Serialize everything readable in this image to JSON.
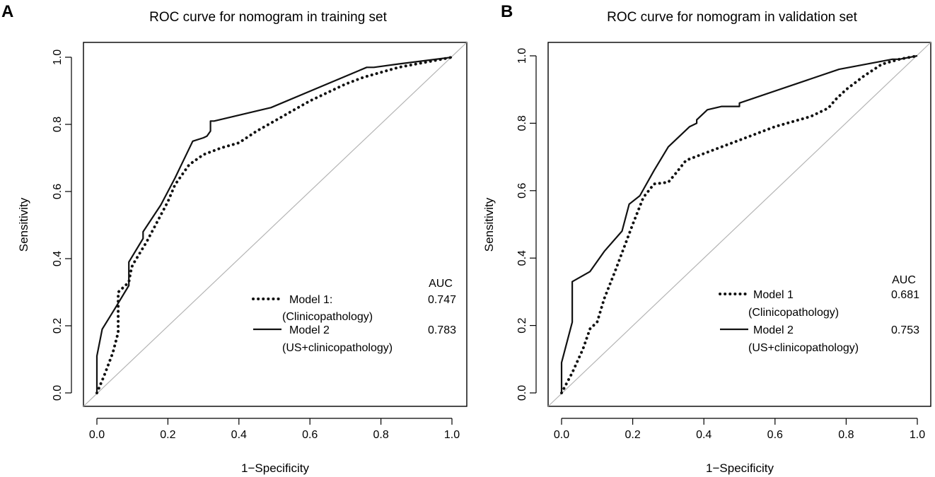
{
  "chart_data": [
    {
      "type": "line",
      "panel": "A",
      "title": "ROC curve for nomogram in training set",
      "xlabel": "1−Specificity",
      "ylabel": "Sensitivity",
      "xlim": [
        0,
        1
      ],
      "ylim": [
        0,
        1
      ],
      "xticks": [
        "0.0",
        "0.2",
        "0.4",
        "0.6",
        "0.8",
        "1.0"
      ],
      "yticks": [
        "0.0",
        "0.2",
        "0.4",
        "0.6",
        "0.8",
        "1.0"
      ],
      "reference_line": "diagonal",
      "legend": {
        "placement": "bottom-right",
        "header": "AUC",
        "entries": [
          {
            "label": "Model 1:",
            "sublabel": "(Clinicopathology)",
            "auc": "0.747",
            "style": "dotted"
          },
          {
            "label": "Model 2",
            "sublabel": "(US+clinicopathology)",
            "auc": "0.783",
            "style": "solid"
          }
        ]
      },
      "series": [
        {
          "name": "Model 1: (Clinicopathology)",
          "style": "dotted",
          "points": [
            [
              0,
              0
            ],
            [
              0.02,
              0.05
            ],
            [
              0.045,
              0.12
            ],
            [
              0.06,
              0.18
            ],
            [
              0.06,
              0.3
            ],
            [
              0.09,
              0.33
            ],
            [
              0.095,
              0.36
            ],
            [
              0.1,
              0.38
            ],
            [
              0.14,
              0.45
            ],
            [
              0.2,
              0.57
            ],
            [
              0.22,
              0.62
            ],
            [
              0.26,
              0.68
            ],
            [
              0.3,
              0.71
            ],
            [
              0.35,
              0.73
            ],
            [
              0.4,
              0.745
            ],
            [
              0.45,
              0.78
            ],
            [
              0.5,
              0.81
            ],
            [
              0.55,
              0.84
            ],
            [
              0.6,
              0.87
            ],
            [
              0.65,
              0.895
            ],
            [
              0.7,
              0.92
            ],
            [
              0.75,
              0.94
            ],
            [
              0.8,
              0.955
            ],
            [
              0.85,
              0.97
            ],
            [
              0.9,
              0.98
            ],
            [
              0.95,
              0.99
            ],
            [
              1,
              1
            ]
          ]
        },
        {
          "name": "Model 2 (US+clinicopathology)",
          "style": "solid",
          "points": [
            [
              0,
              0
            ],
            [
              0,
              0.11
            ],
            [
              0.015,
              0.19
            ],
            [
              0.05,
              0.25
            ],
            [
              0.09,
              0.32
            ],
            [
              0.09,
              0.39
            ],
            [
              0.13,
              0.46
            ],
            [
              0.13,
              0.48
            ],
            [
              0.18,
              0.56
            ],
            [
              0.22,
              0.64
            ],
            [
              0.27,
              0.75
            ],
            [
              0.3,
              0.76
            ],
            [
              0.31,
              0.765
            ],
            [
              0.32,
              0.78
            ],
            [
              0.32,
              0.81
            ],
            [
              0.33,
              0.81
            ],
            [
              0.49,
              0.85
            ],
            [
              0.76,
              0.97
            ],
            [
              0.78,
              0.97
            ],
            [
              0.85,
              0.98
            ],
            [
              1,
              1
            ]
          ]
        }
      ]
    },
    {
      "type": "line",
      "panel": "B",
      "title": "ROC curve for nomogram in validation set",
      "xlabel": "1−Specificity",
      "ylabel": "Sensitivity",
      "xlim": [
        0,
        1
      ],
      "ylim": [
        0,
        1
      ],
      "xticks": [
        "0.0",
        "0.2",
        "0.4",
        "0.6",
        "0.8",
        "1.0"
      ],
      "yticks": [
        "0.0",
        "0.2",
        "0.4",
        "0.6",
        "0.8",
        "1.0"
      ],
      "reference_line": "diagonal",
      "legend": {
        "placement": "bottom-right",
        "header": "AUC",
        "entries": [
          {
            "label": "Model 1",
            "sublabel": "(Clinicopathology)",
            "auc": "0.681",
            "style": "dotted"
          },
          {
            "label": "Model 2",
            "sublabel": "(US+clinicopathology)",
            "auc": "0.753",
            "style": "solid"
          }
        ]
      },
      "series": [
        {
          "name": "Model 1 (Clinicopathology)",
          "style": "dotted",
          "points": [
            [
              0,
              0
            ],
            [
              0.03,
              0.06
            ],
            [
              0.06,
              0.13
            ],
            [
              0.08,
              0.19
            ],
            [
              0.1,
              0.21
            ],
            [
              0.12,
              0.28
            ],
            [
              0.15,
              0.36
            ],
            [
              0.2,
              0.5
            ],
            [
              0.23,
              0.58
            ],
            [
              0.26,
              0.62
            ],
            [
              0.3,
              0.625
            ],
            [
              0.32,
              0.65
            ],
            [
              0.35,
              0.69
            ],
            [
              0.4,
              0.71
            ],
            [
              0.5,
              0.75
            ],
            [
              0.6,
              0.79
            ],
            [
              0.7,
              0.82
            ],
            [
              0.75,
              0.845
            ],
            [
              0.77,
              0.87
            ],
            [
              0.8,
              0.9
            ],
            [
              0.85,
              0.94
            ],
            [
              0.9,
              0.975
            ],
            [
              0.95,
              0.99
            ],
            [
              1,
              1
            ]
          ]
        },
        {
          "name": "Model 2 (US+clinicopathology)",
          "style": "solid",
          "points": [
            [
              0,
              0
            ],
            [
              0,
              0.09
            ],
            [
              0.03,
              0.21
            ],
            [
              0.03,
              0.33
            ],
            [
              0.08,
              0.36
            ],
            [
              0.12,
              0.42
            ],
            [
              0.17,
              0.48
            ],
            [
              0.19,
              0.56
            ],
            [
              0.22,
              0.585
            ],
            [
              0.26,
              0.66
            ],
            [
              0.3,
              0.73
            ],
            [
              0.36,
              0.79
            ],
            [
              0.38,
              0.8
            ],
            [
              0.38,
              0.81
            ],
            [
              0.41,
              0.84
            ],
            [
              0.45,
              0.85
            ],
            [
              0.5,
              0.85
            ],
            [
              0.5,
              0.86
            ],
            [
              0.78,
              0.96
            ],
            [
              0.93,
              0.99
            ],
            [
              0.95,
              0.99
            ],
            [
              1,
              1
            ]
          ]
        }
      ]
    }
  ]
}
